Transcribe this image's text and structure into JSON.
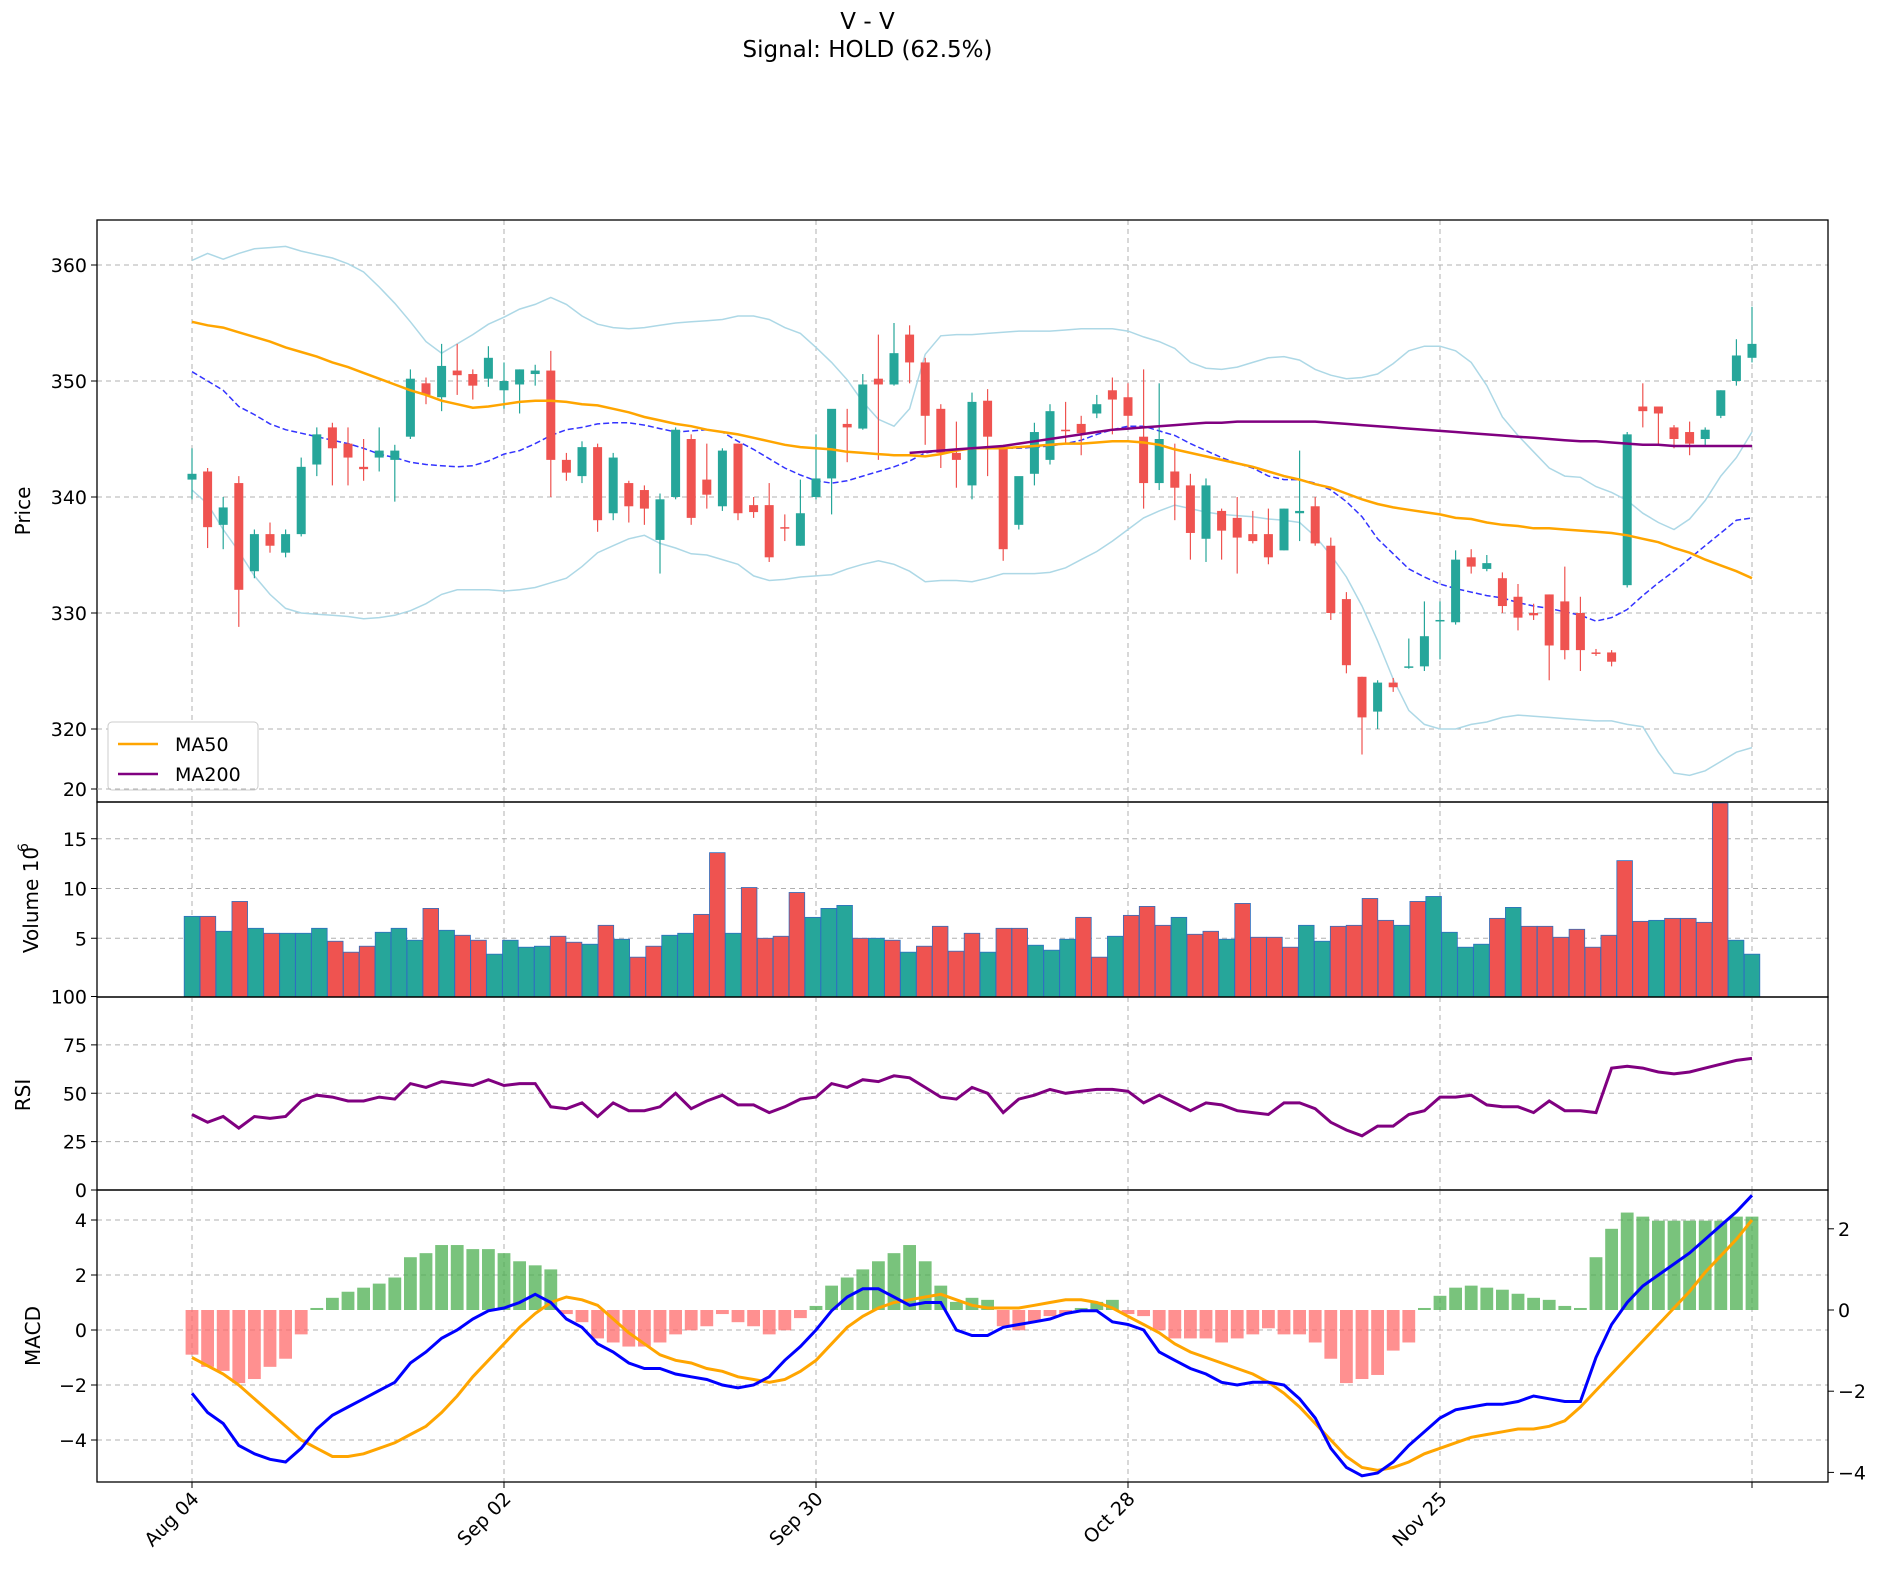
{
  "header": {
    "title": "V - V",
    "subtitle": "Signal: HOLD (62.5%)"
  },
  "colors": {
    "up": "#26a69a",
    "down": "#ef5350",
    "ma50": "#ffa500",
    "ma200": "#800080",
    "bb_mid": "#3333ff",
    "bb_band": "#add8e6",
    "rsi": "#800080",
    "macd": "#0000ff",
    "macd_signal": "#ffa500",
    "hist_pos": "#4caf50",
    "hist_neg": "#ff6b6b",
    "grid": "#b0b0b0"
  },
  "chart_data": [
    {
      "type": "candlestick",
      "ylabel": "Price",
      "ylim": [
        314,
        364
      ],
      "yticks": [
        320,
        330,
        340,
        350,
        360
      ],
      "xtick_labels": [
        "Aug 04",
        "Sep 02",
        "Sep 30",
        "Oct 28",
        "Nov 25"
      ],
      "grid": true,
      "legend_position": "lower-left",
      "legend": [
        "MA50",
        "MA200"
      ],
      "series_ohlc": [
        [
          341.5,
          344.2,
          339.8,
          342.0
        ],
        [
          342.2,
          342.5,
          335.6,
          337.4
        ],
        [
          337.6,
          340.0,
          335.5,
          339.1
        ],
        [
          341.2,
          341.8,
          328.8,
          332.0
        ],
        [
          333.6,
          337.2,
          333.0,
          336.8
        ],
        [
          336.8,
          337.8,
          335.2,
          335.8
        ],
        [
          335.2,
          337.2,
          334.8,
          336.8
        ],
        [
          336.8,
          343.4,
          336.6,
          342.6
        ],
        [
          342.8,
          346.0,
          341.8,
          345.4
        ],
        [
          346.0,
          346.4,
          341.0,
          344.2
        ],
        [
          344.6,
          346.0,
          341.0,
          343.4
        ],
        [
          342.6,
          345.0,
          341.4,
          342.4
        ],
        [
          343.4,
          346.0,
          342.2,
          344.0
        ],
        [
          343.2,
          344.5,
          339.6,
          344.0
        ],
        [
          345.2,
          351.0,
          345.0,
          350.2
        ],
        [
          349.8,
          350.3,
          348.0,
          348.8
        ],
        [
          348.6,
          353.2,
          347.4,
          351.3
        ],
        [
          350.9,
          353.2,
          348.8,
          350.5
        ],
        [
          350.6,
          351.0,
          348.4,
          349.6
        ],
        [
          350.2,
          353.0,
          349.5,
          352.0
        ],
        [
          349.2,
          351.6,
          347.6,
          350.0
        ],
        [
          349.7,
          351.0,
          347.2,
          351.0
        ],
        [
          350.6,
          351.4,
          349.6,
          350.9
        ],
        [
          350.9,
          352.6,
          340.0,
          343.2
        ],
        [
          343.2,
          343.8,
          341.4,
          342.1
        ],
        [
          341.8,
          344.8,
          341.2,
          344.3
        ],
        [
          344.3,
          344.6,
          337.0,
          338.0
        ],
        [
          338.6,
          343.8,
          338.0,
          343.4
        ],
        [
          341.2,
          341.4,
          337.8,
          339.2
        ],
        [
          340.6,
          341.0,
          337.6,
          339.0
        ],
        [
          336.3,
          340.3,
          333.4,
          339.8
        ],
        [
          340.0,
          346.0,
          339.8,
          345.8
        ],
        [
          345.0,
          345.4,
          337.6,
          338.2
        ],
        [
          341.5,
          344.6,
          339.0,
          340.2
        ],
        [
          339.2,
          344.2,
          338.8,
          344.0
        ],
        [
          344.6,
          344.6,
          338.0,
          338.6
        ],
        [
          339.3,
          340.0,
          338.2,
          338.7
        ],
        [
          339.3,
          341.2,
          334.4,
          334.8
        ],
        [
          337.4,
          338.5,
          336.2,
          337.3
        ],
        [
          335.8,
          341.5,
          335.8,
          338.6
        ],
        [
          340.0,
          345.4,
          339.8,
          341.6
        ],
        [
          341.6,
          346.2,
          338.5,
          347.6
        ],
        [
          346.3,
          347.6,
          343.0,
          346.0
        ],
        [
          345.9,
          350.6,
          345.8,
          349.7
        ],
        [
          350.2,
          354.0,
          343.2,
          349.7
        ],
        [
          349.7,
          355.0,
          349.6,
          352.4
        ],
        [
          354.0,
          354.8,
          349.8,
          351.6
        ],
        [
          351.6,
          352.0,
          344.5,
          347.0
        ],
        [
          347.6,
          348.0,
          342.5,
          343.8
        ],
        [
          343.8,
          346.5,
          340.8,
          343.2
        ],
        [
          341.0,
          349.0,
          339.8,
          348.2
        ],
        [
          348.3,
          349.3,
          341.8,
          345.2
        ],
        [
          344.2,
          344.5,
          334.5,
          335.5
        ],
        [
          337.6,
          341.0,
          337.2,
          341.8
        ],
        [
          342.0,
          346.4,
          341.0,
          345.6
        ],
        [
          343.2,
          348.0,
          342.8,
          347.4
        ],
        [
          345.8,
          348.2,
          344.7,
          345.7
        ],
        [
          346.3,
          347.0,
          343.6,
          345.5
        ],
        [
          347.2,
          348.8,
          346.8,
          348.0
        ],
        [
          349.2,
          350.3,
          345.4,
          348.4
        ],
        [
          348.6,
          349.8,
          346.0,
          347.0
        ],
        [
          345.2,
          351.0,
          339.0,
          341.2
        ],
        [
          341.2,
          349.8,
          340.6,
          345.0
        ],
        [
          342.2,
          344.6,
          338.0,
          340.8
        ],
        [
          341.0,
          342.0,
          334.6,
          336.9
        ],
        [
          336.4,
          341.6,
          334.4,
          341.0
        ],
        [
          338.8,
          339.0,
          334.6,
          337.1
        ],
        [
          338.2,
          340.0,
          333.4,
          336.5
        ],
        [
          336.8,
          338.8,
          336.0,
          336.2
        ],
        [
          336.8,
          339.0,
          334.2,
          334.8
        ],
        [
          335.4,
          339.0,
          335.4,
          339.0
        ],
        [
          338.6,
          344.0,
          336.2,
          338.8
        ],
        [
          339.2,
          340.0,
          335.8,
          336.0
        ],
        [
          335.8,
          336.5,
          329.4,
          330.0
        ],
        [
          331.2,
          331.8,
          324.8,
          325.5
        ],
        [
          324.5,
          324.5,
          317.8,
          321.0
        ],
        [
          321.5,
          324.2,
          320.0,
          324.0
        ],
        [
          324.0,
          324.4,
          323.2,
          323.6
        ],
        [
          325.4,
          327.8,
          325.2,
          325.4
        ],
        [
          325.4,
          331.0,
          325.0,
          328.0
        ],
        [
          329.3,
          331.0,
          326.0,
          329.4
        ],
        [
          329.2,
          335.4,
          329.0,
          334.6
        ],
        [
          334.8,
          335.5,
          333.4,
          334.0
        ],
        [
          333.8,
          335.0,
          333.6,
          334.3
        ],
        [
          333.0,
          333.5,
          330.0,
          330.6
        ],
        [
          331.4,
          332.5,
          328.5,
          329.6
        ],
        [
          330.0,
          330.8,
          329.4,
          329.8
        ],
        [
          331.6,
          331.6,
          324.2,
          327.2
        ],
        [
          331.0,
          334.0,
          326.0,
          326.8
        ],
        [
          330.0,
          331.4,
          325.0,
          326.8
        ],
        [
          326.6,
          326.9,
          326.3,
          326.5
        ],
        [
          326.6,
          326.8,
          325.4,
          325.8
        ],
        [
          332.4,
          345.6,
          332.2,
          345.4
        ],
        [
          347.8,
          349.8,
          346.0,
          347.4
        ],
        [
          347.8,
          347.4,
          344.6,
          347.2
        ],
        [
          346.0,
          346.2,
          344.2,
          345.0
        ],
        [
          345.6,
          346.5,
          343.6,
          344.6
        ],
        [
          345.0,
          346.0,
          344.4,
          345.8
        ],
        [
          347.0,
          349.2,
          346.8,
          349.2
        ],
        [
          350.0,
          353.6,
          349.6,
          352.2
        ],
        [
          352.0,
          356.4,
          351.6,
          353.2
        ]
      ],
      "ma50": [
        355.1,
        354.8,
        354.6,
        354.2,
        353.8,
        353.4,
        352.9,
        352.5,
        352.1,
        351.6,
        351.2,
        350.7,
        350.2,
        349.7,
        349.2,
        348.8,
        348.3,
        348.0,
        347.7,
        347.8,
        348.0,
        348.2,
        348.3,
        348.3,
        348.2,
        348.0,
        347.9,
        347.6,
        347.3,
        346.9,
        346.6,
        346.3,
        346.1,
        345.8,
        345.6,
        345.4,
        345.1,
        344.8,
        344.5,
        344.3,
        344.2,
        344.1,
        343.9,
        343.8,
        343.7,
        343.6,
        343.6,
        343.5,
        343.7,
        344.0,
        344.2,
        344.2,
        344.2,
        344.3,
        344.4,
        344.5,
        344.6,
        344.6,
        344.7,
        344.8,
        344.8,
        344.7,
        344.5,
        344.1,
        343.8,
        343.5,
        343.2,
        342.9,
        342.6,
        342.2,
        341.8,
        341.5,
        341.1,
        340.8,
        340.3,
        339.8,
        339.4,
        339.1,
        338.9,
        338.7,
        338.5,
        338.2,
        338.1,
        337.8,
        337.6,
        337.5,
        337.3,
        337.3,
        337.2,
        337.1,
        337.0,
        336.9,
        336.7,
        336.4,
        336.1,
        335.6,
        335.2,
        334.6,
        334.1,
        333.6,
        333.0
      ]
    }
  ]
}
